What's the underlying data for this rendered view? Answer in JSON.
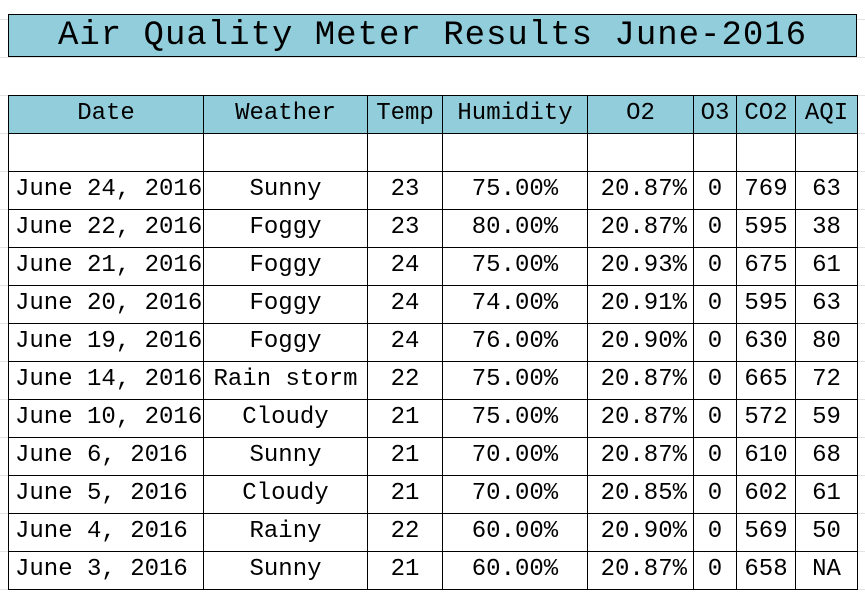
{
  "header": {
    "title": "Air Quality Meter Results June-2016"
  },
  "table": {
    "columns": [
      "Date",
      "Weather",
      "Temp",
      "Humidity",
      "O2",
      "O3",
      "CO2",
      "AQI"
    ],
    "rows": [
      [
        "June 24, 2016",
        "Sunny",
        "23",
        "75.00%",
        "20.87%",
        "0",
        "769",
        "63"
      ],
      [
        "June 22, 2016",
        "Foggy",
        "23",
        "80.00%",
        "20.87%",
        "0",
        "595",
        "38"
      ],
      [
        "June 21, 2016",
        "Foggy",
        "24",
        "75.00%",
        "20.93%",
        "0",
        "675",
        "61"
      ],
      [
        "June 20, 2016",
        "Foggy",
        "24",
        "74.00%",
        "20.91%",
        "0",
        "595",
        "63"
      ],
      [
        "June 19, 2016",
        "Foggy",
        "24",
        "76.00%",
        "20.90%",
        "0",
        "630",
        "80"
      ],
      [
        "June 14, 2016",
        "Rain storm",
        "22",
        "75.00%",
        "20.87%",
        "0",
        "665",
        "72"
      ],
      [
        "June 10, 2016",
        "Cloudy",
        "21",
        "75.00%",
        "20.87%",
        "0",
        "572",
        "59"
      ],
      [
        "June 6, 2016",
        "Sunny",
        "21",
        "70.00%",
        "20.87%",
        "0",
        "610",
        "68"
      ],
      [
        "June 5, 2016",
        "Cloudy",
        "21",
        "70.00%",
        "20.85%",
        "0",
        "602",
        "61"
      ],
      [
        "June 4, 2016",
        "Rainy",
        "22",
        "60.00%",
        "20.90%",
        "0",
        "569",
        "50"
      ],
      [
        "June 3, 2016",
        "Sunny",
        "21",
        "60.00%",
        "20.87%",
        "0",
        "658",
        "NA"
      ]
    ]
  }
}
